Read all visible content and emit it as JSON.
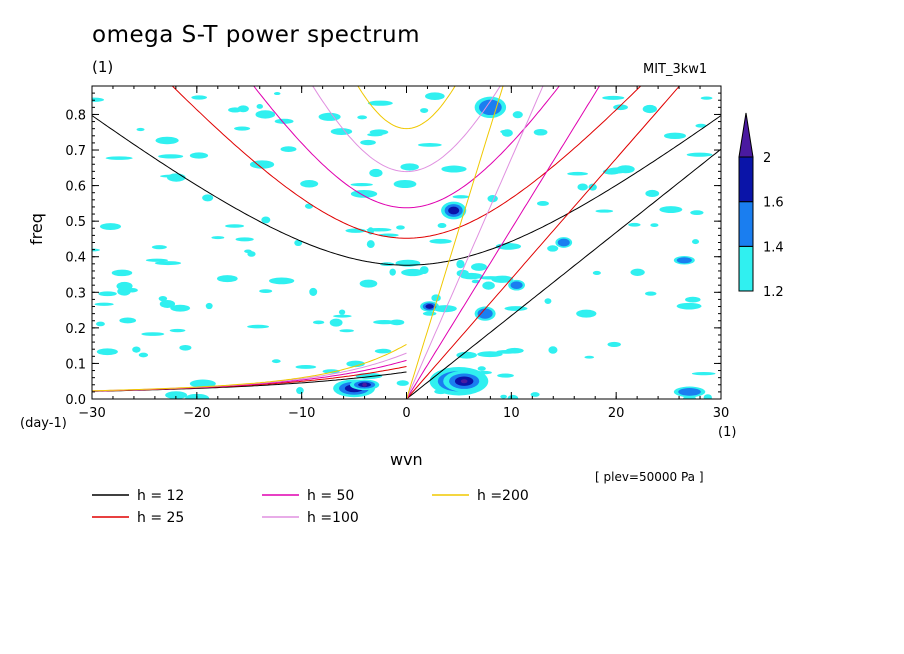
{
  "chart_data": {
    "type": "contour",
    "title": "omega S-T power spectrum",
    "subtitle": "(1)",
    "run_name": "MIT_3kw1",
    "xlabel": "wvn",
    "ylabel": "freq",
    "x_unit": "(1)",
    "y_unit": "(day-1)",
    "note": "[ plev=50000 Pa ]",
    "xlim": [
      -30,
      30
    ],
    "ylim": [
      0,
      0.88
    ],
    "x_ticks": [
      "−30",
      "−20",
      "−10",
      "0",
      "10",
      "20",
      "30"
    ],
    "x_tick_values": [
      -30,
      -20,
      -10,
      0,
      10,
      20,
      30
    ],
    "y_ticks": [
      "0.0",
      "0.1",
      "0.2",
      "0.3",
      "0.4",
      "0.5",
      "0.6",
      "0.7",
      "0.8"
    ],
    "y_tick_values": [
      0,
      0.1,
      0.2,
      0.3,
      0.4,
      0.5,
      0.6,
      0.7,
      0.8
    ],
    "colorbar": {
      "levels": [
        "1.2",
        "1.4",
        "1.6",
        "2"
      ],
      "colors": [
        "#30f0f0",
        "#1a7ef0",
        "#0a14a8",
        "#4a1aa0"
      ]
    },
    "dispersion_curves": [
      {
        "label": "h = 12",
        "h": 12,
        "color": "#000000"
      },
      {
        "label": "h = 25",
        "h": 25,
        "color": "#e00000"
      },
      {
        "label": "h = 50",
        "h": 50,
        "color": "#e000b0"
      },
      {
        "label": "h =100",
        "h": 100,
        "color": "#e090e0"
      },
      {
        "label": "h =200",
        "h": 200,
        "color": "#f0c800"
      }
    ],
    "blobs": [
      {
        "x": -5,
        "y": 0.03,
        "rx": 2.0,
        "ry": 0.025,
        "level": 3
      },
      {
        "x": -4,
        "y": 0.04,
        "rx": 1.4,
        "ry": 0.015,
        "level": 4
      },
      {
        "x": 5,
        "y": 0.05,
        "rx": 2.8,
        "ry": 0.04,
        "level": 3
      },
      {
        "x": 5.5,
        "y": 0.05,
        "rx": 2.0,
        "ry": 0.03,
        "level": 4
      },
      {
        "x": 4.5,
        "y": 0.53,
        "rx": 1.2,
        "ry": 0.025,
        "level": 3
      },
      {
        "x": 2.2,
        "y": 0.26,
        "rx": 0.9,
        "ry": 0.015,
        "level": 3
      },
      {
        "x": 8,
        "y": 0.82,
        "rx": 1.5,
        "ry": 0.03,
        "level": 2
      },
      {
        "x": 10.5,
        "y": 0.32,
        "rx": 0.8,
        "ry": 0.015,
        "level": 2
      },
      {
        "x": 7.5,
        "y": 0.24,
        "rx": 1.0,
        "ry": 0.02,
        "level": 2
      },
      {
        "x": 15,
        "y": 0.44,
        "rx": 0.8,
        "ry": 0.015,
        "level": 2
      },
      {
        "x": 26.5,
        "y": 0.39,
        "rx": 1.0,
        "ry": 0.012,
        "level": 2
      },
      {
        "x": 27,
        "y": 0.02,
        "rx": 1.5,
        "ry": 0.015,
        "level": 2
      }
    ]
  }
}
